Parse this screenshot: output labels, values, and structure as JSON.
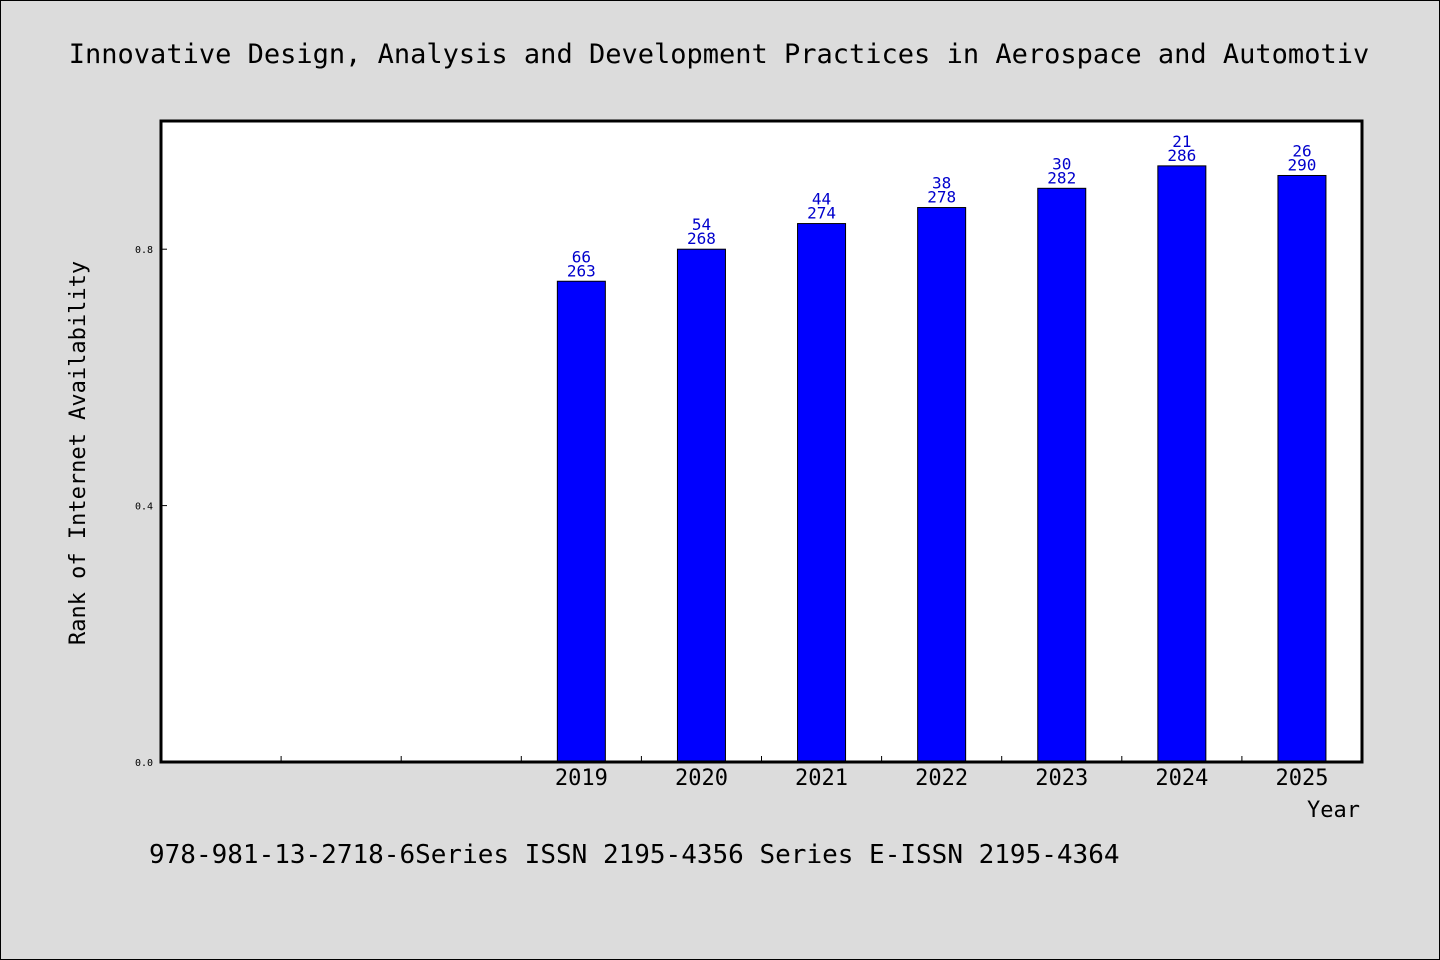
{
  "colors": {
    "background": "#dcdcdc",
    "plot_background": "#ffffff",
    "bar": "#0000ff",
    "data_label": "#0000cc"
  },
  "footer": "978-981-13-2718-6Series ISSN 2195-4356 Series E-ISSN 2195-4364",
  "chart_data": {
    "type": "bar",
    "title": "Innovative Design, Analysis and Development Practices in Aerospace and Automotiv",
    "xlabel": "Year",
    "ylabel": "Rank of Internet Availability",
    "categories": [
      "",
      "",
      "",
      "2019",
      "2020",
      "2021",
      "2022",
      "2023",
      "2024",
      "2025"
    ],
    "values": [
      null,
      null,
      null,
      0.75,
      0.8,
      0.84,
      0.865,
      0.895,
      0.93,
      0.915
    ],
    "label_top": [
      null,
      null,
      null,
      "66",
      "54",
      "44",
      "38",
      "30",
      "21",
      "26"
    ],
    "label_bottom": [
      null,
      null,
      null,
      "263",
      "268",
      "274",
      "278",
      "282",
      "286",
      "290"
    ],
    "yticks": [
      0.0,
      0.4,
      0.8
    ],
    "ytick_labels": [
      "0.0",
      "0.4",
      "0.8"
    ],
    "ylim": [
      0,
      1.0
    ],
    "grid": false,
    "legend": "none"
  }
}
